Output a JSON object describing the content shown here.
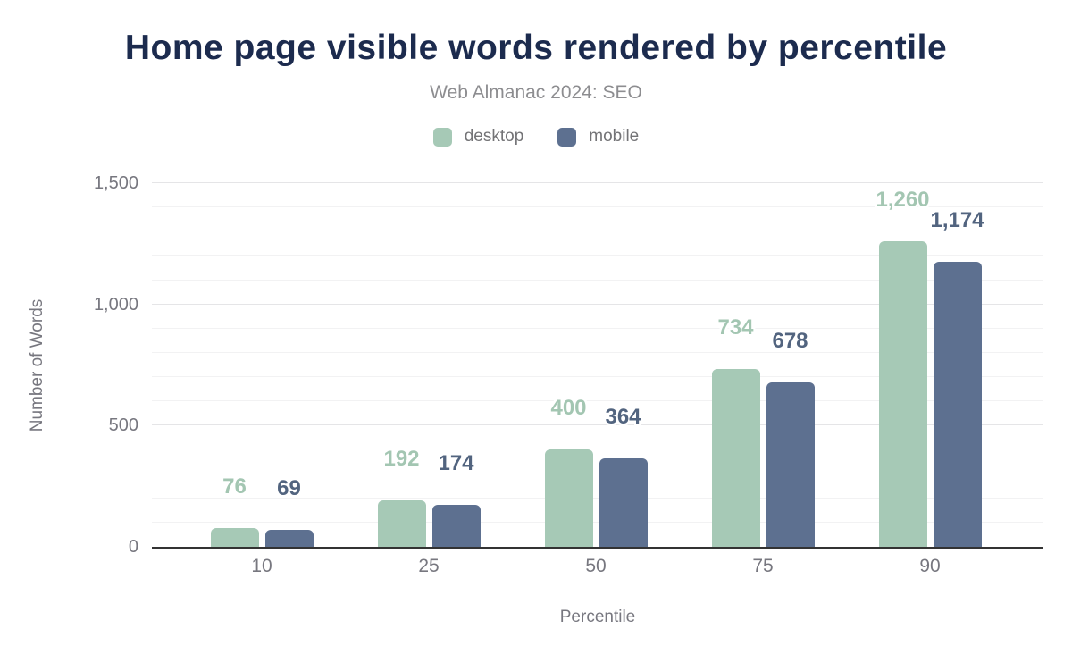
{
  "header": {
    "title": "Home page visible words rendered by percentile",
    "subtitle": "Web Almanac 2024: SEO"
  },
  "chart_data": {
    "type": "bar",
    "title": "Home page visible words rendered by percentile",
    "subtitle": "Web Almanac 2024: SEO",
    "categories": [
      "10",
      "25",
      "50",
      "75",
      "90"
    ],
    "series": [
      {
        "name": "desktop",
        "values": [
          76,
          192,
          400,
          734,
          1260
        ],
        "color": "#a6c9b6",
        "label_color": "#a3c6b2"
      },
      {
        "name": "mobile",
        "values": [
          69,
          174,
          364,
          678,
          1174
        ],
        "color": "#5d7090",
        "label_color": "#52647f"
      }
    ],
    "xlabel": "Percentile",
    "ylabel": "Number of Words",
    "ylim": [
      0,
      1500
    ],
    "yticks": [
      0,
      500,
      1000,
      1500
    ],
    "minor_grid_step": 100,
    "grid": true,
    "legend_position": "top",
    "data_labels": true
  },
  "colors": {
    "title_text": "#1c2b4e",
    "subtitle_text": "#8d8d90",
    "axis_text": "#77777f",
    "legend_text": "#737376",
    "grid_major": "#e5e5e7",
    "grid_minor": "#f2f2f3",
    "axis_baseline": "#333333",
    "desktop": "#a6c9b6",
    "mobile": "#5d7090"
  }
}
